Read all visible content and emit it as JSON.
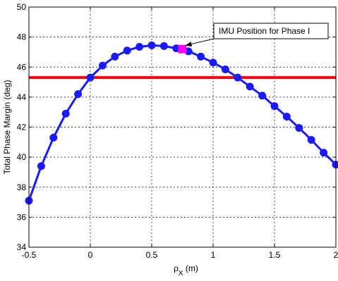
{
  "chart_data": {
    "type": "line",
    "title": "",
    "xlabel": "ρ",
    "xlabel_subscript": "X",
    "xlabel_unit": " (m)",
    "ylabel": "Total Phase Margin (deg)",
    "xlim": [
      -0.5,
      2
    ],
    "ylim": [
      34,
      50
    ],
    "xticks": [
      -0.5,
      0,
      0.5,
      1,
      1.5,
      2
    ],
    "yticks": [
      34,
      36,
      38,
      40,
      42,
      44,
      46,
      48,
      50
    ],
    "xtick_labels": [
      "-0.5",
      "0",
      "0.5",
      "1",
      "1.5",
      "2"
    ],
    "ytick_labels": [
      "34",
      "36",
      "38",
      "40",
      "42",
      "44",
      "46",
      "48",
      "50"
    ],
    "grid": true,
    "series": [
      {
        "name": "",
        "color": "#1a1aff",
        "marker": "circle",
        "x": [
          -0.5,
          -0.4,
          -0.3,
          -0.2,
          -0.1,
          0,
          0.1,
          0.2,
          0.3,
          0.4,
          0.5,
          0.6,
          0.7,
          0.8,
          0.9,
          1.0,
          1.1,
          1.2,
          1.3,
          1.4,
          1.5,
          1.6,
          1.7,
          1.8,
          1.9,
          2.0
        ],
        "y": [
          37.1,
          39.4,
          41.3,
          42.9,
          44.2,
          45.3,
          46.1,
          46.7,
          47.1,
          47.35,
          47.45,
          47.4,
          47.25,
          47.05,
          46.7,
          46.3,
          45.85,
          45.3,
          44.7,
          44.1,
          43.4,
          42.7,
          41.95,
          41.15,
          40.3,
          39.5
        ]
      }
    ],
    "hline": {
      "y": 45.3,
      "color": "#ff0000"
    },
    "highlight": {
      "x": 0.75,
      "y": 47.2,
      "color": "#ff00ff",
      "marker": "square"
    },
    "annotation": {
      "text": "IMU Position for Phase I",
      "target_x": 0.75,
      "target_y": 47.2
    },
    "background": "#ffffff",
    "grid_color": "#000000"
  }
}
